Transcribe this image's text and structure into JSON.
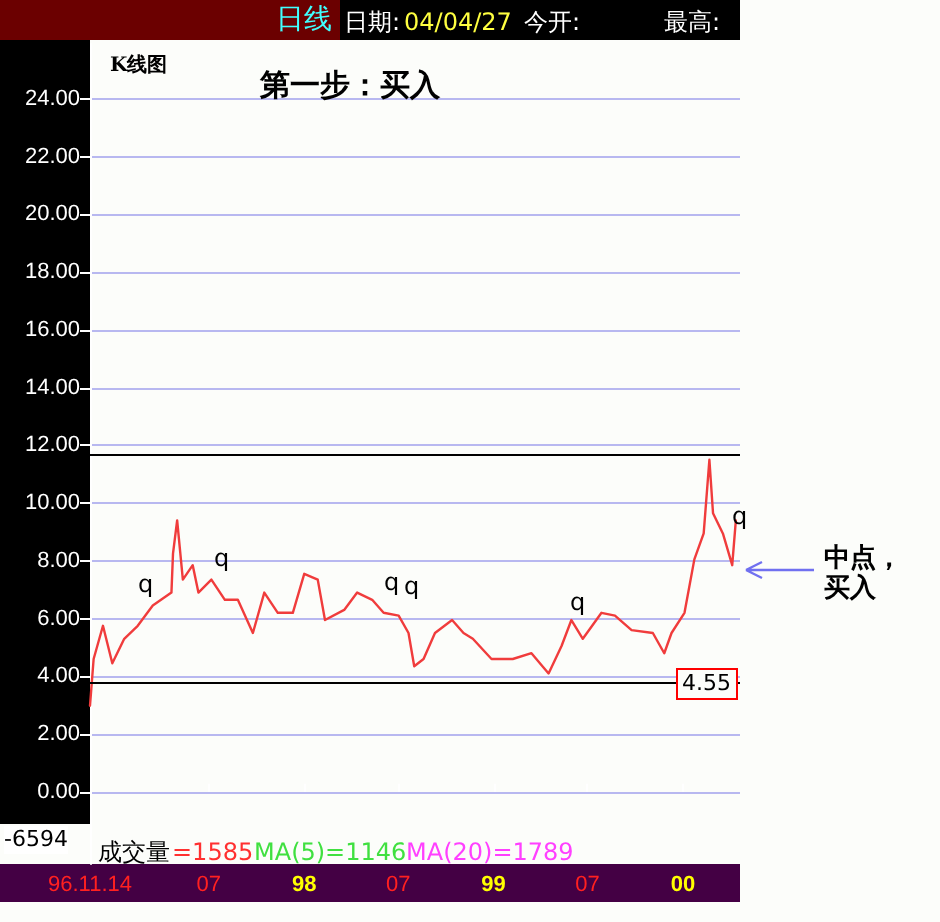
{
  "chart_data": {
    "type": "line",
    "title": "第一步：买入",
    "subtitle": "K线图",
    "x": [
      "1996-11-14",
      "1996-11-21",
      "1996-12-09",
      "1996-12-27",
      "1997-01-19",
      "1997-02-14",
      "1997-03-15",
      "1997-04-20",
      "1997-04-23",
      "1997-05-01",
      "1997-05-12",
      "1997-05-31",
      "1997-06-11",
      "1997-07-06",
      "1997-08-01",
      "1997-08-26",
      "1997-09-24",
      "1997-10-16",
      "1997-11-11",
      "1997-12-10",
      "1998-01-01",
      "1998-01-27",
      "1998-02-10",
      "1998-03-19",
      "1998-04-13",
      "1998-05-12",
      "1998-06-03",
      "1998-07-02",
      "1998-07-21",
      "1998-08-01",
      "1998-08-19",
      "1998-09-10",
      "1998-10-13",
      "1998-11-04",
      "1998-11-22",
      "1998-12-28",
      "1999-02-07",
      "1999-03-15",
      "1999-04-17",
      "1999-05-12",
      "1999-05-31",
      "1999-06-22",
      "1999-07-28",
      "1999-08-23",
      "1999-09-24",
      "1999-11-04",
      "1999-11-26",
      "1999-12-10",
      "2000-01-04",
      "2000-01-23",
      "2000-02-10",
      "2000-02-21",
      "2000-02-28",
      "2000-03-18",
      "2000-04-05",
      "2000-04-12"
    ],
    "series": [
      {
        "color": "#f03c3c",
        "values": [
          2.98,
          4.6,
          5.75,
          4.45,
          5.3,
          5.75,
          6.45,
          6.9,
          8.25,
          9.4,
          7.35,
          7.85,
          6.9,
          7.35,
          6.65,
          6.65,
          5.5,
          6.9,
          6.2,
          6.2,
          7.55,
          7.35,
          5.95,
          6.3,
          6.9,
          6.65,
          6.2,
          6.1,
          5.5,
          4.35,
          4.6,
          5.5,
          5.95,
          5.5,
          5.3,
          4.6,
          4.6,
          4.8,
          4.1,
          5.05,
          5.95,
          5.3,
          6.2,
          6.1,
          5.6,
          5.5,
          4.8,
          5.5,
          6.2,
          8.05,
          8.95,
          11.5,
          9.65,
          8.95,
          7.85,
          9.4
        ]
      }
    ],
    "xlim": [
      "1996-11-14",
      "2000-04-20"
    ],
    "xticks": [
      {
        "value": "1996-11-14",
        "label": "96.11.14"
      },
      {
        "value": "1997-07-01",
        "label": "07"
      },
      {
        "value": "1998-01-01",
        "label": "98"
      },
      {
        "value": "1998-07-01",
        "label": "07"
      },
      {
        "value": "1999-01-01",
        "label": "99"
      },
      {
        "value": "1999-07-01",
        "label": "07"
      },
      {
        "value": "2000-01-01",
        "label": "00"
      }
    ],
    "ylim": [
      -2.5,
      25.9
    ],
    "yticks": [
      {
        "value": 0,
        "label": "0.00"
      },
      {
        "value": 2,
        "label": "2.00"
      },
      {
        "value": 4,
        "label": "4.00"
      },
      {
        "value": 6,
        "label": "6.00"
      },
      {
        "value": 8,
        "label": "8.00"
      },
      {
        "value": 10,
        "label": "10.00"
      },
      {
        "value": 12,
        "label": "12.00"
      },
      {
        "value": 14,
        "label": "14.00"
      },
      {
        "value": 16,
        "label": "16.00"
      },
      {
        "value": 18,
        "label": "18.00"
      },
      {
        "value": 20,
        "label": "20.00"
      },
      {
        "value": 22,
        "label": "22.00"
      },
      {
        "value": 24,
        "label": "24.00"
      }
    ],
    "grid": "y",
    "marker": "none",
    "line_style": "solid",
    "ref_lines": [
      {
        "axis": "y",
        "value": 11.65,
        "color": "#000000"
      },
      {
        "axis": "y",
        "value": 3.8,
        "color": "#000000"
      }
    ],
    "annotations": [
      "日线",
      "日期:",
      "04/04/27",
      "今开:",
      "最高:",
      "-6594",
      "成交量",
      "=1585",
      "MA(5)=1146",
      "MA(20)=1789",
      "中点，买入",
      "4.55",
      "q",
      "q",
      "q",
      "q",
      "q",
      "q"
    ]
  }
}
